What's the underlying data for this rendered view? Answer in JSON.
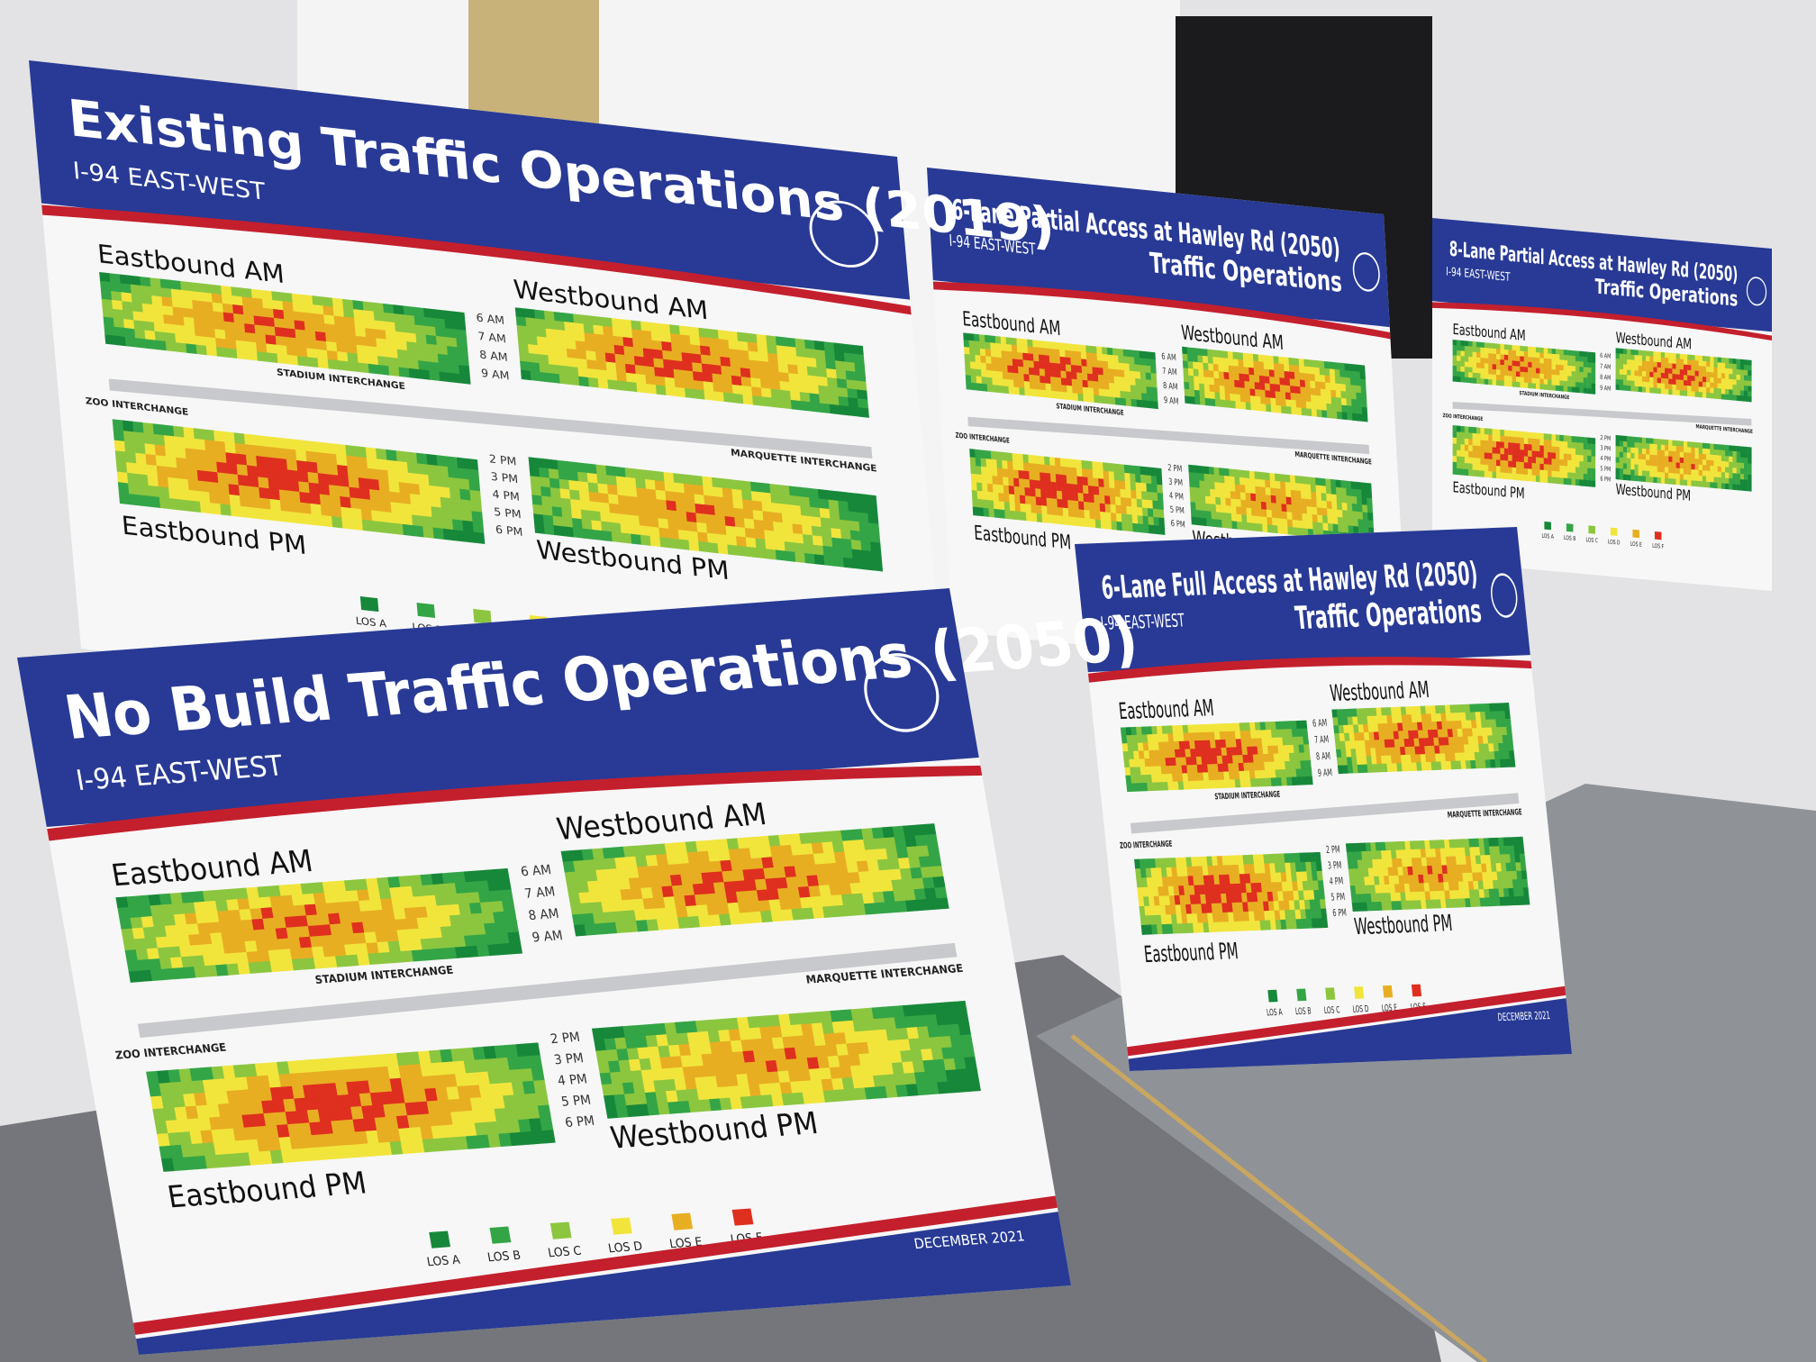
{
  "posters": [
    {
      "title": [
        "8-Lane Partial Access at Hawley Rd (2050)",
        "Traffic Operations"
      ],
      "subtitle": "I-94 EAST-WEST",
      "panels": [
        "Eastbound AM",
        "Westbound AM",
        "Eastbound PM",
        "Westbound PM"
      ]
    },
    {
      "title": [
        "6-Lane Partial Access at Hawley Rd (2050)",
        "Traffic Operations"
      ],
      "subtitle": "I-94 EAST-WEST",
      "panels": [
        "Eastbound AM",
        "Westbound AM",
        "Eastbound PM",
        "Westbound PM"
      ]
    },
    {
      "title": [
        "Existing Traffic Operations (2019)"
      ],
      "subtitle": "I-94 EAST-WEST",
      "panels": [
        "Eastbound AM",
        "Westbound AM",
        "Eastbound PM",
        "Westbound PM"
      ]
    },
    {
      "title": [
        "6-Lane Full Access at Hawley Rd (2050)",
        "Traffic Operations"
      ],
      "subtitle": "I-94 EAST-WEST",
      "panels": [
        "Eastbound AM",
        "Westbound AM",
        "Eastbound PM",
        "Westbound PM"
      ]
    },
    {
      "title": [
        "No Build Traffic Operations (2050)"
      ],
      "subtitle": "I-94 EAST-WEST",
      "panels": [
        "Eastbound AM",
        "Westbound AM",
        "Eastbound PM",
        "Westbound PM"
      ]
    }
  ],
  "am_times": [
    "6 AM",
    "7 AM",
    "8 AM",
    "9 AM"
  ],
  "pm_times": [
    "2 PM",
    "3 PM",
    "4 PM",
    "5 PM",
    "6 PM"
  ],
  "interchanges": [
    "ZOO INTERCHANGE",
    "STADIUM INTERCHANGE",
    "MARQUETTE INTERCHANGE"
  ],
  "legend": [
    "LOS A",
    "LOS B",
    "LOS C",
    "LOS D",
    "LOS E",
    "LOS F"
  ],
  "date": "DECEMBER 2021"
}
